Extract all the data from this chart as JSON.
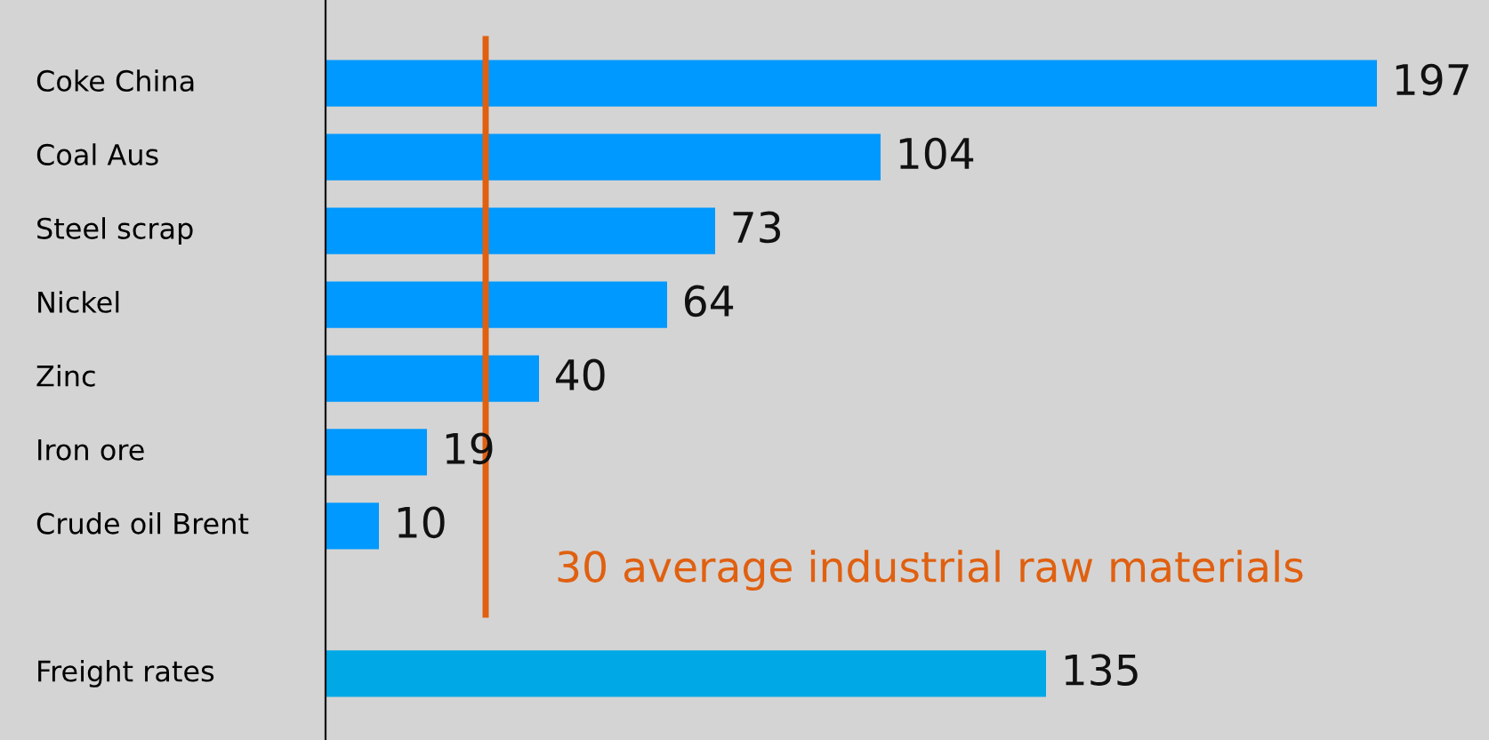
{
  "chart_data": {
    "type": "bar",
    "orientation": "horizontal",
    "categories": [
      "Coke China",
      "Coal Aus",
      "Steel scrap",
      "Nickel",
      "Zinc",
      "Iron ore",
      "Crude oil Brent",
      null,
      "Freight rates"
    ],
    "values": [
      197,
      104,
      73,
      64,
      40,
      19,
      10,
      null,
      135
    ],
    "colors": [
      "#0099ff",
      "#0099ff",
      "#0099ff",
      "#0099ff",
      "#0099ff",
      "#0099ff",
      "#0099ff",
      "#0099ff",
      "#00a8e6"
    ],
    "xlim": [
      0,
      218
    ],
    "data_labels": true,
    "tick_labels": false,
    "ref_lines": [
      {
        "axis": "x",
        "value": 30,
        "label": "30 average industrial raw materials",
        "color": "#e06010"
      }
    ]
  }
}
